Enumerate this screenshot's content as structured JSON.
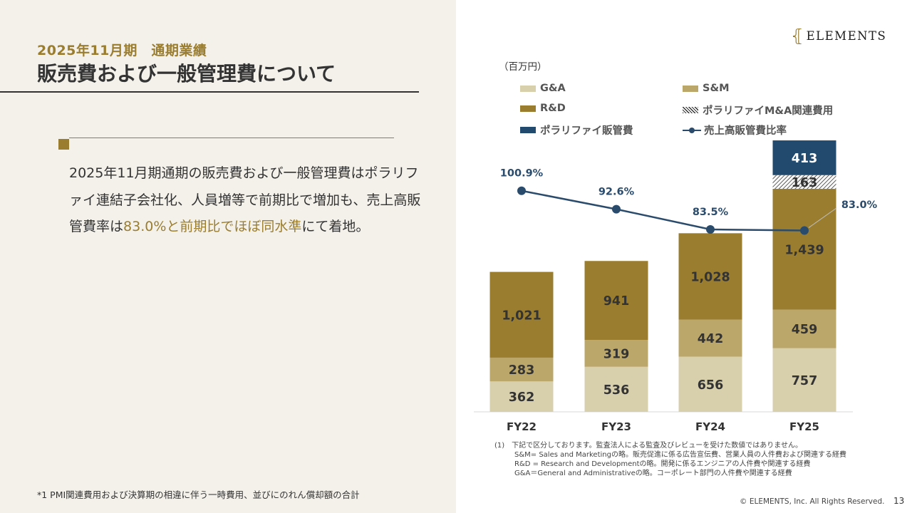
{
  "header": {
    "subtitle": "2025年11月期　通期業績",
    "title": "販売費および一般管理費について"
  },
  "summary": {
    "part1": "2025年11月期通期の販売費および一般管理費はポラリファイ連結子会社化、人員増等で前期比で増加も、売上高販管費率は",
    "highlight": "83.0%と前期比でほぼ同水準",
    "part2": "にて着地。"
  },
  "footnote_left": "*1 PMI関連費用および決算期の相違に伴う一時費用、並びにのれん償却額の合計",
  "logo": {
    "text": "ELEMENTS"
  },
  "unit_label": "（百万円）",
  "legend": {
    "ga": "G&A",
    "sm": "S&M",
    "rd": "R&D",
    "ma": "ポラリファイM&A関連費用",
    "polarify": "ポラリファイ販管費",
    "ratio": "売上高販管費比率"
  },
  "colors": {
    "ga": "#d8cfad",
    "sm": "#bca76b",
    "rd": "#9a7d2e",
    "polarify": "#214a6e",
    "ratio": "#2a4b6b",
    "accent": "#9a7d2e"
  },
  "chart_data": {
    "type": "bar",
    "stacked": true,
    "categories": [
      "FY22",
      "FY23",
      "FY24",
      "FY25"
    ],
    "series": [
      {
        "name": "G&A",
        "values": [
          362,
          536,
          656,
          757
        ]
      },
      {
        "name": "S&M",
        "values": [
          283,
          319,
          442,
          459
        ]
      },
      {
        "name": "R&D",
        "values": [
          1021,
          941,
          1028,
          1439
        ]
      },
      {
        "name": "ポラリファイM&A関連費用",
        "values": [
          null,
          null,
          null,
          163
        ]
      },
      {
        "name": "ポラリファイ販管費",
        "values": [
          null,
          null,
          null,
          413
        ]
      }
    ],
    "line_series": {
      "name": "売上高販管費比率",
      "values": [
        100.9,
        92.6,
        83.5,
        83.0
      ],
      "labels": [
        "100.9%",
        "92.6%",
        "83.5%",
        "83.0%"
      ]
    },
    "ylim": [
      0,
      3300
    ],
    "legend": "top"
  },
  "notes": {
    "line1": "(1)　下記で区分しております。監査法人による監査及びレビューを受けた数値ではありません。",
    "line2": "S&M= Sales and Marketingの略。販売促進に係る広告宣伝費、営業人員の人件費および関連する経費",
    "line3": "R&D = Research and Developmentの略。開発に係るエンジニアの人件費や関連する経費",
    "line4": "G&A＝General and Administrativeの略。コーポレート部門の人件費や関連する経費"
  },
  "copyright": "© ELEMENTS, Inc. All Rights Reserved.",
  "page_number": "13"
}
